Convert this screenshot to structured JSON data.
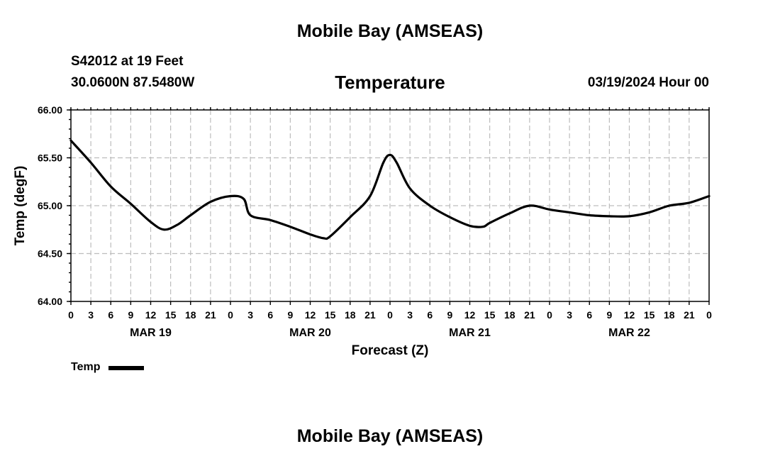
{
  "header": {
    "title": "Mobile Bay (AMSEAS)",
    "station": "S42012 at 19 Feet",
    "coords": "30.0600N  87.5480W",
    "chart_title": "Temperature",
    "issued": "03/19/2024 Hour 00"
  },
  "legend": {
    "label": "Temp"
  },
  "footer": {
    "title": "Mobile Bay (AMSEAS)"
  },
  "colors": {
    "line": "#000000",
    "grid": "#bdbdbd"
  },
  "chart_data": {
    "type": "line",
    "title": "Temperature",
    "xlabel": "Forecast (Z)",
    "ylabel": "Temp (degF)",
    "ylim": [
      64.0,
      66.0
    ],
    "xlim": [
      0,
      96
    ],
    "grid": true,
    "legend_position": "bottom-left",
    "y_ticks": [
      "64.00",
      "64.50",
      "65.00",
      "65.50",
      "66.00"
    ],
    "x_ticks": [
      "0",
      "3",
      "6",
      "9",
      "12",
      "15",
      "18",
      "21",
      "0",
      "3",
      "6",
      "9",
      "12",
      "15",
      "18",
      "21",
      "0",
      "3",
      "6",
      "9",
      "12",
      "15",
      "18",
      "21",
      "0",
      "3",
      "6",
      "9",
      "12",
      "15",
      "18",
      "21",
      "0"
    ],
    "date_labels": [
      {
        "label": "MAR 19",
        "hour": 12
      },
      {
        "label": "MAR 20",
        "hour": 36
      },
      {
        "label": "MAR 21",
        "hour": 60
      },
      {
        "label": "MAR 22",
        "hour": 84
      }
    ],
    "series": [
      {
        "name": "Temp",
        "x": [
          0,
          3,
          6,
          9,
          12,
          14,
          16,
          18,
          21,
          24,
          26,
          27,
          30,
          33,
          36,
          38,
          39,
          42,
          45,
          47,
          48,
          49,
          51,
          54,
          57,
          60,
          62,
          63,
          66,
          69,
          72,
          75,
          78,
          81,
          84,
          87,
          90,
          93,
          96
        ],
        "values": [
          65.68,
          65.45,
          65.2,
          65.02,
          64.83,
          64.75,
          64.8,
          64.9,
          65.04,
          65.1,
          65.07,
          64.9,
          64.85,
          64.78,
          64.7,
          64.66,
          64.68,
          64.88,
          65.1,
          65.45,
          65.53,
          65.45,
          65.18,
          65.0,
          64.88,
          64.79,
          64.78,
          64.82,
          64.92,
          65.0,
          64.96,
          64.93,
          64.9,
          64.89,
          64.89,
          64.93,
          65.0,
          65.03,
          65.1
        ]
      }
    ]
  }
}
